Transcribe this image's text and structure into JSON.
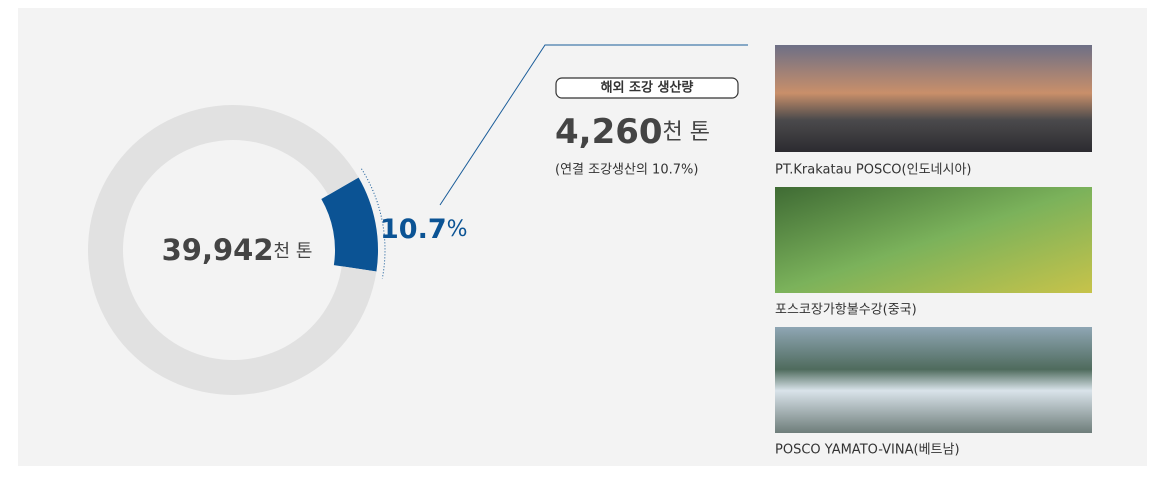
{
  "chart_data": {
    "type": "donut",
    "total_label": "39,942",
    "total_unit": "천 톤",
    "values": [
      10.7,
      89.3
    ],
    "colors": [
      "#0b5394",
      "#e1e1e1"
    ],
    "value_labels": [
      "10.7",
      null
    ],
    "value_unit": "%",
    "badge": "해외 조강 생산량",
    "overseas_label": "4,260",
    "overseas_unit": "천 톤",
    "note": "(연결 조강생산의 10.7%)",
    "photos": [
      "PT.Krakatau POSCO(인도네시아)",
      "포스코장가항불수강(중국)",
      "POSCO YAMATO-VINA(베트남)"
    ]
  }
}
